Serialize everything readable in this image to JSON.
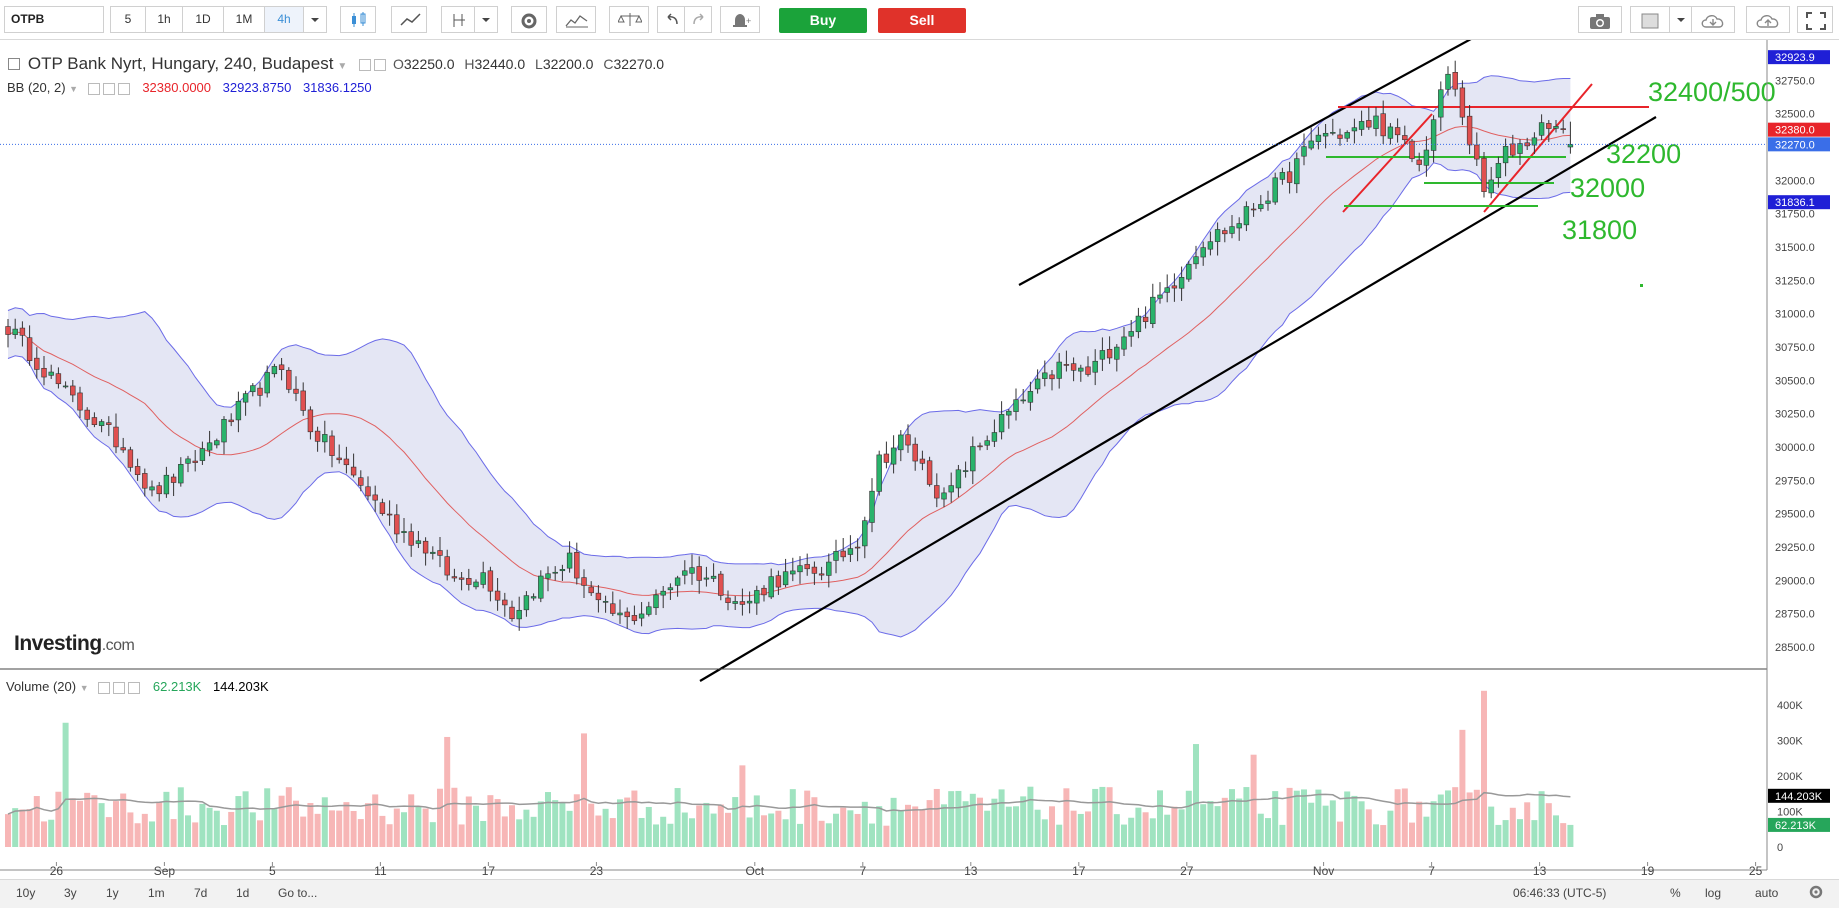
{
  "toolbar": {
    "symbol": "OTPB",
    "timeframes": [
      "5",
      "1h",
      "1D",
      "1M",
      "4h"
    ],
    "active_timeframe": "4h",
    "buy_label": "Buy",
    "sell_label": "Sell"
  },
  "legend": {
    "title": "OTP Bank Nyrt, Hungary, 240, Budapest",
    "open_label": "O",
    "open": "32250.0",
    "high_label": "H",
    "high": "32440.0",
    "low_label": "L",
    "low": "32200.0",
    "close_label": "C",
    "close": "32270.0",
    "bb_label": "BB (20, 2)",
    "bb_mid": "32380.0000",
    "bb_upper": "32923.8750",
    "bb_lower": "31836.1250",
    "volume_label": "Volume (20)",
    "volume_value": "62.213K",
    "volume_ma": "144.203K"
  },
  "logo": "Investing",
  "logo_suffix": ".com",
  "colors": {
    "up": "#26a65b",
    "up_fill": "#2ab36b",
    "down": "#e05050",
    "down_fill": "#e05050",
    "bb_band": "#6b6be8",
    "bb_fill": "#e4e6f4",
    "bb_mid": "#e06060",
    "vol_up": "#9fe3c0",
    "vol_down": "#f7b6b6",
    "vol_ma": "#999999",
    "annot_green": "#2eb82e",
    "annot_red": "#e8242a",
    "trend": "#000000"
  },
  "chart_data": {
    "type": "candlestick",
    "price_axis": {
      "ylim": [
        28250,
        33000
      ],
      "ticks": [
        "32750.0",
        "32500.0",
        "32250.0",
        "32000.0",
        "31750.0",
        "31500.0",
        "31250.0",
        "31000.0",
        "30750.0",
        "30500.0",
        "30250.0",
        "30000.0",
        "29750.0",
        "29500.0",
        "29250.0",
        "29000.0",
        "28750.0",
        "28500.0"
      ],
      "markers": [
        {
          "label": "32923.9",
          "value": 32923.9,
          "color": "#1f1fd6"
        },
        {
          "label": "32380.0",
          "value": 32380.0,
          "color": "#e8242a"
        },
        {
          "label": "32270.0",
          "value": 32270.0,
          "color": "#3a6ee8"
        },
        {
          "label": "31836.1",
          "value": 31836.1,
          "color": "#1f1fd6"
        }
      ]
    },
    "volume_axis": {
      "ylim": [
        0,
        470000
      ],
      "ticks": [
        {
          "label": "400K",
          "value": 400000
        },
        {
          "label": "300K",
          "value": 300000
        },
        {
          "label": "200K",
          "value": 200000
        },
        {
          "label": "100K",
          "value": 100000
        },
        {
          "label": "0",
          "value": 0
        }
      ],
      "markers": [
        {
          "label": "144.203K",
          "value": 144203,
          "color": "#000000"
        },
        {
          "label": "62.213K",
          "value": 62213,
          "color": "#26a65b"
        }
      ]
    },
    "x_labels": [
      {
        "label": "26",
        "index": 7
      },
      {
        "label": "Sep",
        "index": 22
      },
      {
        "label": "5",
        "index": 37
      },
      {
        "label": "11",
        "index": 52
      },
      {
        "label": "17",
        "index": 67
      },
      {
        "label": "23",
        "index": 82
      },
      {
        "label": "Oct",
        "index": 104
      },
      {
        "label": "7",
        "index": 119
      },
      {
        "label": "13",
        "index": 134
      },
      {
        "label": "17",
        "index": 149
      },
      {
        "label": "27",
        "index": 164
      },
      {
        "label": "Nov",
        "index": 183
      },
      {
        "label": "7",
        "index": 198
      },
      {
        "label": "13",
        "index": 213
      },
      {
        "label": "19",
        "index": 228
      },
      {
        "label": "25",
        "index": 243
      }
    ],
    "candle_count": 218,
    "anchors": [
      [
        0,
        30900
      ],
      [
        4,
        30650
      ],
      [
        8,
        30400
      ],
      [
        12,
        30200
      ],
      [
        16,
        30000
      ],
      [
        20,
        29650
      ],
      [
        25,
        29850
      ],
      [
        30,
        30150
      ],
      [
        34,
        30400
      ],
      [
        38,
        30600
      ],
      [
        42,
        30150
      ],
      [
        46,
        29900
      ],
      [
        50,
        29650
      ],
      [
        54,
        29400
      ],
      [
        58,
        29250
      ],
      [
        62,
        29000
      ],
      [
        66,
        29050
      ],
      [
        70,
        28750
      ],
      [
        74,
        29000
      ],
      [
        78,
        29150
      ],
      [
        82,
        28800
      ],
      [
        86,
        28700
      ],
      [
        90,
        28850
      ],
      [
        94,
        29100
      ],
      [
        98,
        29000
      ],
      [
        102,
        28800
      ],
      [
        106,
        29000
      ],
      [
        110,
        29050
      ],
      [
        114,
        29100
      ],
      [
        118,
        29300
      ],
      [
        121,
        29900
      ],
      [
        124,
        30050
      ],
      [
        127,
        29850
      ],
      [
        130,
        29600
      ],
      [
        134,
        29950
      ],
      [
        138,
        30200
      ],
      [
        142,
        30400
      ],
      [
        146,
        30600
      ],
      [
        150,
        30550
      ],
      [
        154,
        30800
      ],
      [
        158,
        31000
      ],
      [
        162,
        31250
      ],
      [
        166,
        31550
      ],
      [
        170,
        31650
      ],
      [
        174,
        31850
      ],
      [
        178,
        32050
      ],
      [
        182,
        32350
      ],
      [
        186,
        32350
      ],
      [
        190,
        32450
      ],
      [
        194,
        32250
      ],
      [
        196,
        32100
      ],
      [
        198,
        32450
      ],
      [
        200,
        32800
      ],
      [
        202,
        32500
      ],
      [
        205,
        31900
      ],
      [
        208,
        32200
      ],
      [
        211,
        32300
      ],
      [
        214,
        32450
      ],
      [
        217,
        32270
      ]
    ],
    "volume_spikes": [
      [
        8,
        350000
      ],
      [
        61,
        310000
      ],
      [
        80,
        320000
      ],
      [
        102,
        230000
      ],
      [
        165,
        290000
      ],
      [
        173,
        260000
      ],
      [
        202,
        330000
      ],
      [
        205,
        440000
      ]
    ]
  },
  "annotations": {
    "levels": [
      {
        "label": "32400/500",
        "value": 32520
      },
      {
        "label": "32200",
        "value": 32150
      },
      {
        "label": "32000",
        "value": 31990
      },
      {
        "label": "31800",
        "value": 31790
      }
    ]
  },
  "bottom": {
    "ranges": [
      "10y",
      "3y",
      "1y",
      "1m",
      "7d",
      "1d",
      "Go to..."
    ],
    "clock": "06:46:33 (UTC-5)",
    "pct": "%",
    "log": "log",
    "auto": "auto"
  }
}
